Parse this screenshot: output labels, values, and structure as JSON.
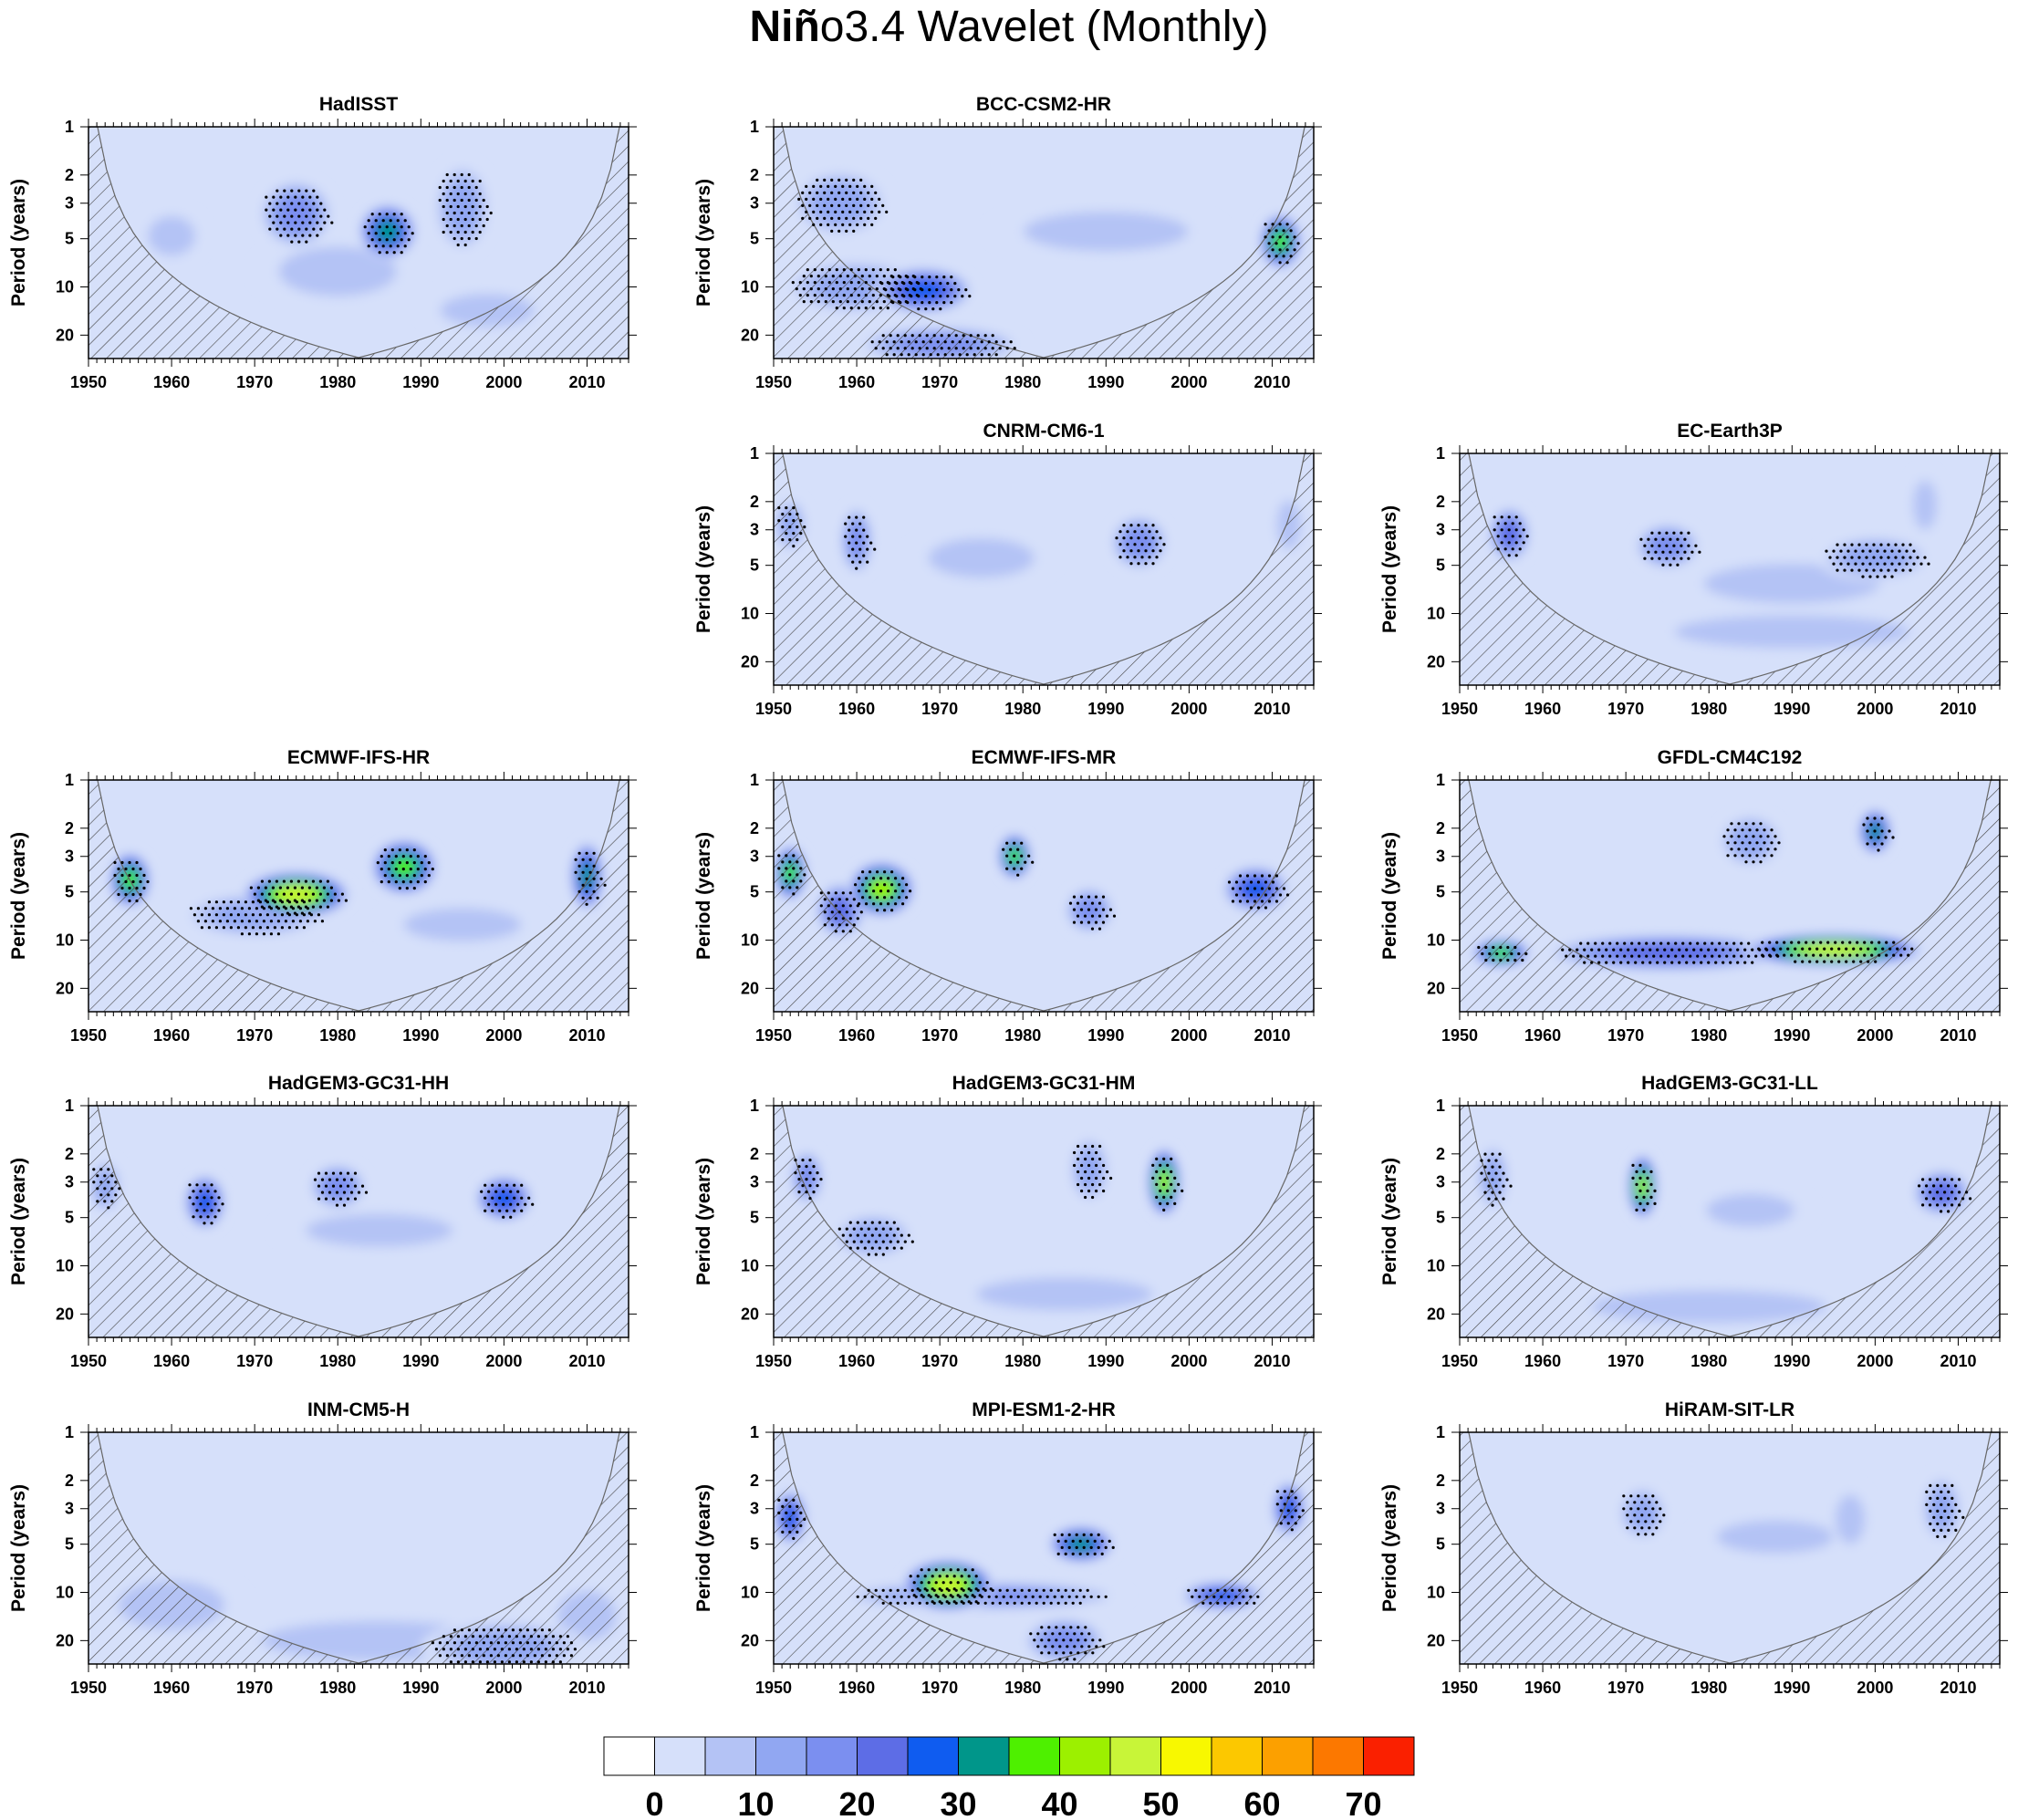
{
  "figure": {
    "title_bold": "Niñ",
    "title_rest": "o3.4 Wavelet (Monthly)"
  },
  "chart_data": {
    "type": "heatmap",
    "xlabel": "",
    "ylabel": "Period (years)",
    "x_ticks": [
      1950,
      1960,
      1970,
      1980,
      1990,
      2000,
      2010
    ],
    "xlim": [
      1950,
      2015
    ],
    "y_ticks": [
      1,
      2,
      3,
      5,
      10,
      20
    ],
    "ylim": [
      1,
      28
    ],
    "y_scale": "log",
    "colorbar": {
      "labels": [
        "0",
        "10",
        "20",
        "30",
        "40",
        "50",
        "60",
        "70"
      ],
      "colors": [
        "#ffffff",
        "#d6e0fa",
        "#b4c3f5",
        "#91a7f2",
        "#7b8ff0",
        "#5d6de6",
        "#0f5cf0",
        "#00968a",
        "#4ef000",
        "#9cf000",
        "#c8f538",
        "#f8f800",
        "#fcc800",
        "#fca000",
        "#fc7800",
        "#fa2000"
      ]
    },
    "panels": [
      {
        "name": "HadISST",
        "col": 0,
        "row": 0,
        "features": [
          {
            "x": 1986,
            "p": 4.5,
            "w": 7,
            "h": 0.12,
            "v": 35
          },
          {
            "x": 1975,
            "p": 3.5,
            "w": 9,
            "h": 0.15,
            "v": 20
          },
          {
            "x": 1995,
            "p": 3.2,
            "w": 7,
            "h": 0.2,
            "v": 15
          },
          {
            "x": 1980,
            "p": 8,
            "w": 20,
            "h": 0.15,
            "v": 10
          },
          {
            "x": 1960,
            "p": 4.8,
            "w": 8,
            "h": 0.12,
            "v": 12
          },
          {
            "x": 1998,
            "p": 14,
            "w": 16,
            "h": 0.1,
            "v": 12
          }
        ]
      },
      {
        "name": "BCC-CSM2-HR",
        "col": 1,
        "row": 0,
        "features": [
          {
            "x": 1968,
            "p": 10.5,
            "w": 12,
            "h": 0.1,
            "v": 30
          },
          {
            "x": 1960,
            "p": 10,
            "w": 18,
            "h": 0.12,
            "v": 18
          },
          {
            "x": 1970,
            "p": 23,
            "w": 20,
            "h": 0.08,
            "v": 22
          },
          {
            "x": 2011,
            "p": 5.2,
            "w": 5,
            "h": 0.12,
            "v": 40
          },
          {
            "x": 1990,
            "p": 4.5,
            "w": 28,
            "h": 0.12,
            "v": 14
          },
          {
            "x": 1958,
            "p": 3,
            "w": 12,
            "h": 0.15,
            "v": 16
          }
        ]
      },
      {
        "name": "CNRM-CM6-1",
        "col": 1,
        "row": 1,
        "features": [
          {
            "x": 1960,
            "p": 3.5,
            "w": 4,
            "h": 0.15,
            "v": 22
          },
          {
            "x": 1994,
            "p": 3.6,
            "w": 7,
            "h": 0.12,
            "v": 20
          },
          {
            "x": 1952,
            "p": 2.8,
            "w": 4,
            "h": 0.12,
            "v": 15
          },
          {
            "x": 2012,
            "p": 2.8,
            "w": 4,
            "h": 0.15,
            "v": 14
          },
          {
            "x": 1975,
            "p": 4.5,
            "w": 18,
            "h": 0.12,
            "v": 12
          }
        ]
      },
      {
        "name": "EC-Earth3P",
        "col": 2,
        "row": 1,
        "features": [
          {
            "x": 1956,
            "p": 3.2,
            "w": 5,
            "h": 0.12,
            "v": 25
          },
          {
            "x": 1975,
            "p": 3.8,
            "w": 8,
            "h": 0.1,
            "v": 22
          },
          {
            "x": 2000,
            "p": 4.5,
            "w": 14,
            "h": 0.1,
            "v": 18
          },
          {
            "x": 1990,
            "p": 6.5,
            "w": 30,
            "h": 0.12,
            "v": 10
          },
          {
            "x": 1990,
            "p": 13,
            "w": 40,
            "h": 0.1,
            "v": 10
          },
          {
            "x": 2006,
            "p": 2.1,
            "w": 4,
            "h": 0.15,
            "v": 14
          }
        ]
      },
      {
        "name": "ECMWF-IFS-HR",
        "col": 0,
        "row": 2,
        "features": [
          {
            "x": 1975,
            "p": 5.2,
            "w": 13,
            "h": 0.1,
            "v": 52
          },
          {
            "x": 1988,
            "p": 3.5,
            "w": 8,
            "h": 0.12,
            "v": 42
          },
          {
            "x": 1955,
            "p": 4.2,
            "w": 5,
            "h": 0.12,
            "v": 44
          },
          {
            "x": 2010,
            "p": 4,
            "w": 4,
            "h": 0.15,
            "v": 38
          },
          {
            "x": 1970,
            "p": 7,
            "w": 18,
            "h": 0.1,
            "v": 15
          },
          {
            "x": 1995,
            "p": 8,
            "w": 20,
            "h": 0.1,
            "v": 10
          }
        ]
      },
      {
        "name": "ECMWF-IFS-MR",
        "col": 1,
        "row": 2,
        "features": [
          {
            "x": 1963,
            "p": 4.8,
            "w": 8,
            "h": 0.12,
            "v": 48
          },
          {
            "x": 1979,
            "p": 3,
            "w": 4,
            "h": 0.1,
            "v": 42
          },
          {
            "x": 1952,
            "p": 3.8,
            "w": 4,
            "h": 0.12,
            "v": 44
          },
          {
            "x": 2008,
            "p": 4.8,
            "w": 8,
            "h": 0.1,
            "v": 30
          },
          {
            "x": 1958,
            "p": 6.5,
            "w": 6,
            "h": 0.12,
            "v": 26
          },
          {
            "x": 1988,
            "p": 6.5,
            "w": 6,
            "h": 0.1,
            "v": 20
          }
        ]
      },
      {
        "name": "GFDL-CM4C192",
        "col": 2,
        "row": 2,
        "features": [
          {
            "x": 1995,
            "p": 11.5,
            "w": 22,
            "h": 0.07,
            "v": 50
          },
          {
            "x": 1955,
            "p": 12,
            "w": 7,
            "h": 0.06,
            "v": 40
          },
          {
            "x": 2000,
            "p": 2.1,
            "w": 4,
            "h": 0.1,
            "v": 36
          },
          {
            "x": 1975,
            "p": 12,
            "w": 30,
            "h": 0.08,
            "v": 28
          },
          {
            "x": 1985,
            "p": 2.4,
            "w": 8,
            "h": 0.12,
            "v": 15
          }
        ]
      },
      {
        "name": "HadGEM3-GC31-HH",
        "col": 0,
        "row": 3,
        "features": [
          {
            "x": 1964,
            "p": 4,
            "w": 5,
            "h": 0.12,
            "v": 34
          },
          {
            "x": 2000,
            "p": 3.8,
            "w": 7,
            "h": 0.1,
            "v": 34
          },
          {
            "x": 1980,
            "p": 3.2,
            "w": 7,
            "h": 0.1,
            "v": 20
          },
          {
            "x": 1952,
            "p": 3.2,
            "w": 4,
            "h": 0.12,
            "v": 16
          },
          {
            "x": 1985,
            "p": 6,
            "w": 25,
            "h": 0.1,
            "v": 10
          }
        ]
      },
      {
        "name": "HadGEM3-GC31-HM",
        "col": 1,
        "row": 3,
        "features": [
          {
            "x": 1997,
            "p": 3,
            "w": 4,
            "h": 0.15,
            "v": 46
          },
          {
            "x": 1954,
            "p": 2.8,
            "w": 4,
            "h": 0.12,
            "v": 20
          },
          {
            "x": 1988,
            "p": 2.5,
            "w": 5,
            "h": 0.15,
            "v": 18
          },
          {
            "x": 1962,
            "p": 6.5,
            "w": 10,
            "h": 0.1,
            "v": 15
          },
          {
            "x": 1985,
            "p": 15,
            "w": 30,
            "h": 0.1,
            "v": 10
          }
        ]
      },
      {
        "name": "HadGEM3-GC31-LL",
        "col": 2,
        "row": 3,
        "features": [
          {
            "x": 1972,
            "p": 3.2,
            "w": 3.5,
            "h": 0.14,
            "v": 46
          },
          {
            "x": 2008,
            "p": 3.5,
            "w": 7,
            "h": 0.1,
            "v": 28
          },
          {
            "x": 1954,
            "p": 2.8,
            "w": 4,
            "h": 0.15,
            "v": 18
          },
          {
            "x": 1985,
            "p": 4.5,
            "w": 15,
            "h": 0.1,
            "v": 12
          },
          {
            "x": 1980,
            "p": 18,
            "w": 40,
            "h": 0.1,
            "v": 12
          }
        ]
      },
      {
        "name": "INM-CM5-H",
        "col": 0,
        "row": 4,
        "features": [
          {
            "x": 1960,
            "p": 12,
            "w": 18,
            "h": 0.15,
            "v": 14
          },
          {
            "x": 2000,
            "p": 22,
            "w": 20,
            "h": 0.12,
            "v": 18
          },
          {
            "x": 1985,
            "p": 20,
            "w": 40,
            "h": 0.12,
            "v": 11
          },
          {
            "x": 2010,
            "p": 14,
            "w": 10,
            "h": 0.15,
            "v": 12
          }
        ]
      },
      {
        "name": "MPI-ESM1-2-HR",
        "col": 1,
        "row": 4,
        "features": [
          {
            "x": 1971,
            "p": 9,
            "w": 11,
            "h": 0.11,
            "v": 52
          },
          {
            "x": 1987,
            "p": 5,
            "w": 8,
            "h": 0.08,
            "v": 36
          },
          {
            "x": 2004,
            "p": 10.5,
            "w": 10,
            "h": 0.06,
            "v": 32
          },
          {
            "x": 1952,
            "p": 3.4,
            "w": 4,
            "h": 0.12,
            "v": 34
          },
          {
            "x": 2012,
            "p": 3,
            "w": 4,
            "h": 0.12,
            "v": 34
          },
          {
            "x": 1985,
            "p": 20,
            "w": 10,
            "h": 0.1,
            "v": 22
          },
          {
            "x": 1975,
            "p": 10.5,
            "w": 35,
            "h": 0.06,
            "v": 20
          }
        ]
      },
      {
        "name": "HiRAM-SIT-LR",
        "col": 2,
        "row": 4,
        "features": [
          {
            "x": 1972,
            "p": 3.2,
            "w": 6,
            "h": 0.12,
            "v": 16
          },
          {
            "x": 1997,
            "p": 3.5,
            "w": 5,
            "h": 0.15,
            "v": 14
          },
          {
            "x": 2008,
            "p": 3,
            "w": 5,
            "h": 0.15,
            "v": 15
          },
          {
            "x": 1988,
            "p": 4.5,
            "w": 20,
            "h": 0.1,
            "v": 10
          }
        ]
      }
    ]
  }
}
